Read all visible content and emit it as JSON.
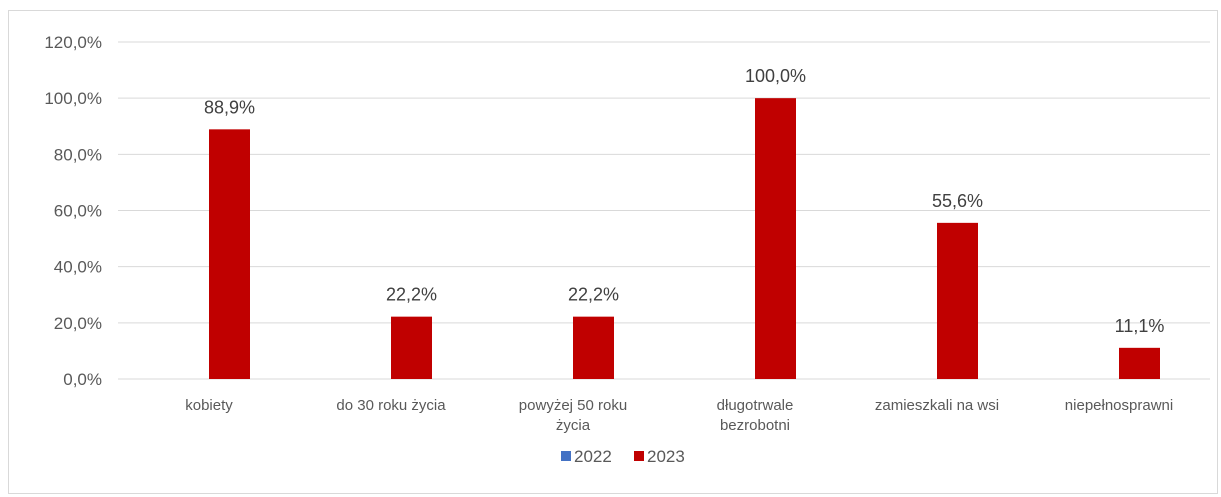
{
  "chart_data": {
    "type": "bar",
    "categories": [
      [
        "kobiety"
      ],
      [
        "do 30 roku życia"
      ],
      [
        "powyżej 50 roku",
        "życia"
      ],
      [
        "długotrwale",
        "bezrobotni"
      ],
      [
        "zamieszkali na wsi"
      ],
      [
        "niepełnosprawni"
      ]
    ],
    "series": [
      {
        "name": "2022",
        "color": "#4472c4",
        "values": [
          null,
          null,
          null,
          null,
          null,
          null
        ],
        "labels": [
          "",
          "",
          "",
          "",
          "",
          ""
        ]
      },
      {
        "name": "2023",
        "color": "#c00000",
        "values": [
          88.9,
          22.2,
          22.2,
          100.0,
          55.6,
          11.1
        ],
        "labels": [
          "88,9%",
          "22,2%",
          "22,2%",
          "100,0%",
          "55,6%",
          "11,1%"
        ]
      }
    ],
    "ylim": [
      0,
      120
    ],
    "yticks": [
      0,
      20,
      40,
      60,
      80,
      100,
      120
    ],
    "ytick_labels": [
      "0,0%",
      "20,0%",
      "40,0%",
      "60,0%",
      "80,0%",
      "100,0%",
      "120,0%"
    ],
    "grid": true,
    "legend_position": "bottom",
    "title": "",
    "xlabel": "",
    "ylabel": "",
    "gridline_color": "#d9d9d9"
  }
}
